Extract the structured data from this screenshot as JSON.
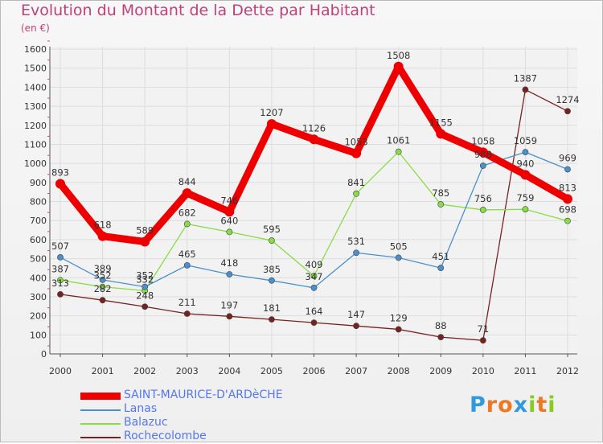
{
  "chart_data": {
    "type": "line",
    "title": "Evolution du Montant de la Dette par Habitant",
    "subtitle": "(en €)",
    "x": [
      "2000",
      "2001",
      "2002",
      "2003",
      "2004",
      "2005",
      "2006",
      "2007",
      "2008",
      "2009",
      "2010",
      "2011",
      "2012"
    ],
    "ylim": [
      0,
      1600
    ],
    "yticks": [
      0,
      100,
      200,
      300,
      400,
      500,
      600,
      700,
      800,
      900,
      1000,
      1100,
      1200,
      1300,
      1400,
      1500,
      1600
    ],
    "grid": true,
    "legend_position": "bottom-left",
    "series": [
      {
        "name": "SAINT-MAURICE-D'ARDèCHE",
        "color": "#ee0000",
        "values": [
          893,
          618,
          589,
          844,
          746,
          1207,
          1126,
          1053,
          1508,
          1155,
          1058,
          940,
          813
        ],
        "labels": [
          "893",
          "618",
          "589",
          "844",
          "746",
          "1207",
          "1126",
          "1053",
          "1508",
          "1155",
          "1058",
          "940",
          "813"
        ],
        "start": 0
      },
      {
        "name": "Lanas",
        "color": "#4a90cc",
        "values": [
          507,
          389,
          352,
          465,
          418,
          385,
          347,
          531,
          505,
          451,
          988,
          1059,
          969
        ],
        "labels": [
          "507",
          "389",
          "352",
          "465",
          "418",
          "385",
          "347",
          "531",
          "505",
          "451",
          "988",
          "1059",
          "969"
        ],
        "start": 0
      },
      {
        "name": "Balazuc",
        "color": "#88dd44",
        "values": [
          387,
          352,
          332,
          682,
          640,
          595,
          409,
          841,
          1061,
          785,
          756,
          759,
          698
        ],
        "labels": [
          "387",
          "352",
          "332",
          "682",
          "640",
          "595",
          "409",
          "841",
          "1061",
          "785",
          "756",
          "759",
          "698"
        ],
        "start": 0
      },
      {
        "name": "Rochecolombe",
        "color": "#772222",
        "values": [
          313,
          282,
          248,
          211,
          197,
          181,
          164,
          147,
          129,
          88,
          71,
          1387,
          1274
        ],
        "labels": [
          "313",
          "282",
          "248",
          "211",
          "197",
          "181",
          "164",
          "147",
          "129",
          "88",
          "71",
          "1387",
          "1274"
        ],
        "start": 0
      }
    ]
  },
  "logo": {
    "letters": [
      "P",
      "r",
      "o",
      "x",
      "i",
      "t",
      "i"
    ],
    "colors": [
      "#3399dd",
      "#ee7722",
      "#ee7722",
      "#3399dd",
      "#88cc22",
      "#ee7722",
      "#88cc22"
    ]
  }
}
